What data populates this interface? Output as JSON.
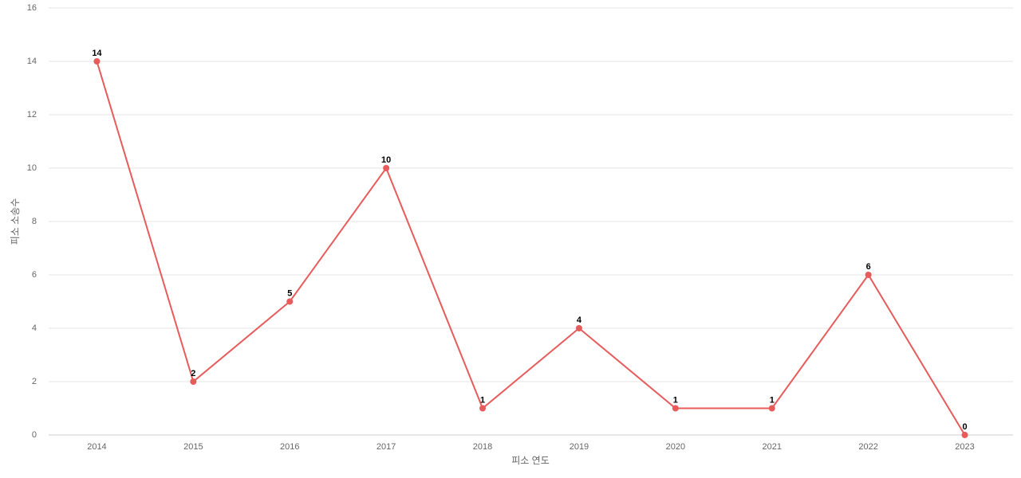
{
  "chart_data": {
    "type": "line",
    "x_label": "피소 연도",
    "y_label": "피소 소송수",
    "categories": [
      "2014",
      "2015",
      "2016",
      "2017",
      "2018",
      "2019",
      "2020",
      "2021",
      "2022",
      "2023"
    ],
    "series": [
      {
        "name": "피소 소송수",
        "color": "#e85b5b",
        "values": [
          14,
          2,
          5,
          10,
          1,
          4,
          1,
          1,
          6,
          0
        ]
      }
    ],
    "ylim": [
      0,
      16
    ],
    "yticks": [
      0,
      2,
      4,
      6,
      8,
      10,
      12,
      14,
      16
    ],
    "grid": true
  }
}
